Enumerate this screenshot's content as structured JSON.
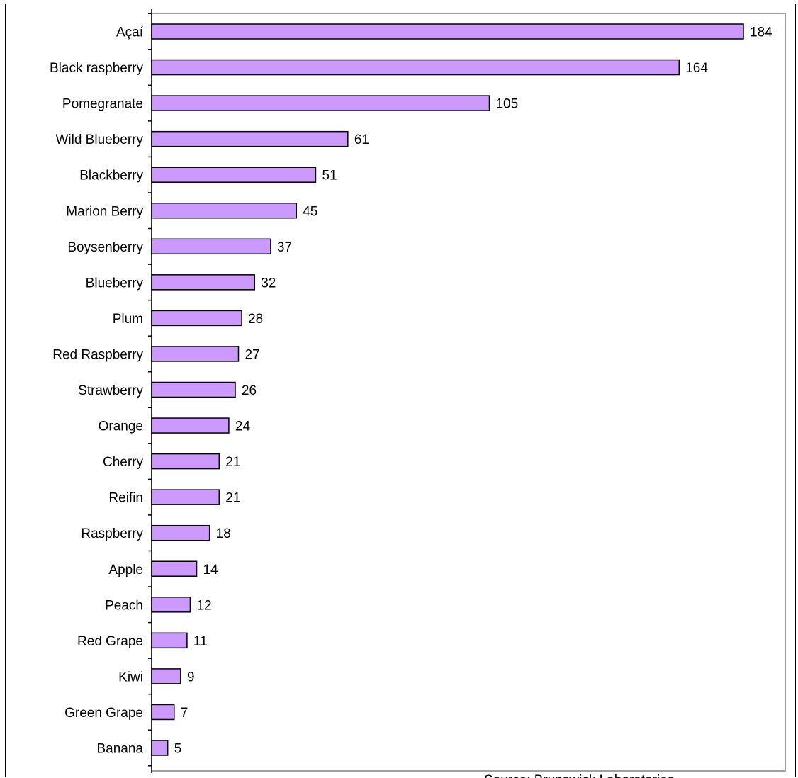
{
  "chart_data": {
    "type": "bar",
    "orientation": "horizontal",
    "categories": [
      "Açaí",
      "Black raspberry",
      "Pomegranate",
      "Wild Blueberry",
      "Blackberry",
      "Marion Berry",
      "Boysenberry",
      "Blueberry",
      "Plum",
      "Red Raspberry",
      "Strawberry",
      "Orange",
      "Cherry",
      "Reifin",
      "Raspberry",
      "Apple",
      "Peach",
      "Red Grape",
      "Kiwi",
      "Green Grape",
      "Banana"
    ],
    "values": [
      184,
      164,
      105,
      61,
      51,
      45,
      37,
      32,
      28,
      27,
      26,
      24,
      21,
      21,
      18,
      14,
      12,
      11,
      9,
      7,
      5
    ],
    "xlim": [
      0,
      198
    ],
    "bar_color": "#cc99ff",
    "bar_edge_color": "#000000",
    "plot_border_color": "#808080",
    "source_text": "Source: Brunswick Laboratories",
    "grid": false
  }
}
